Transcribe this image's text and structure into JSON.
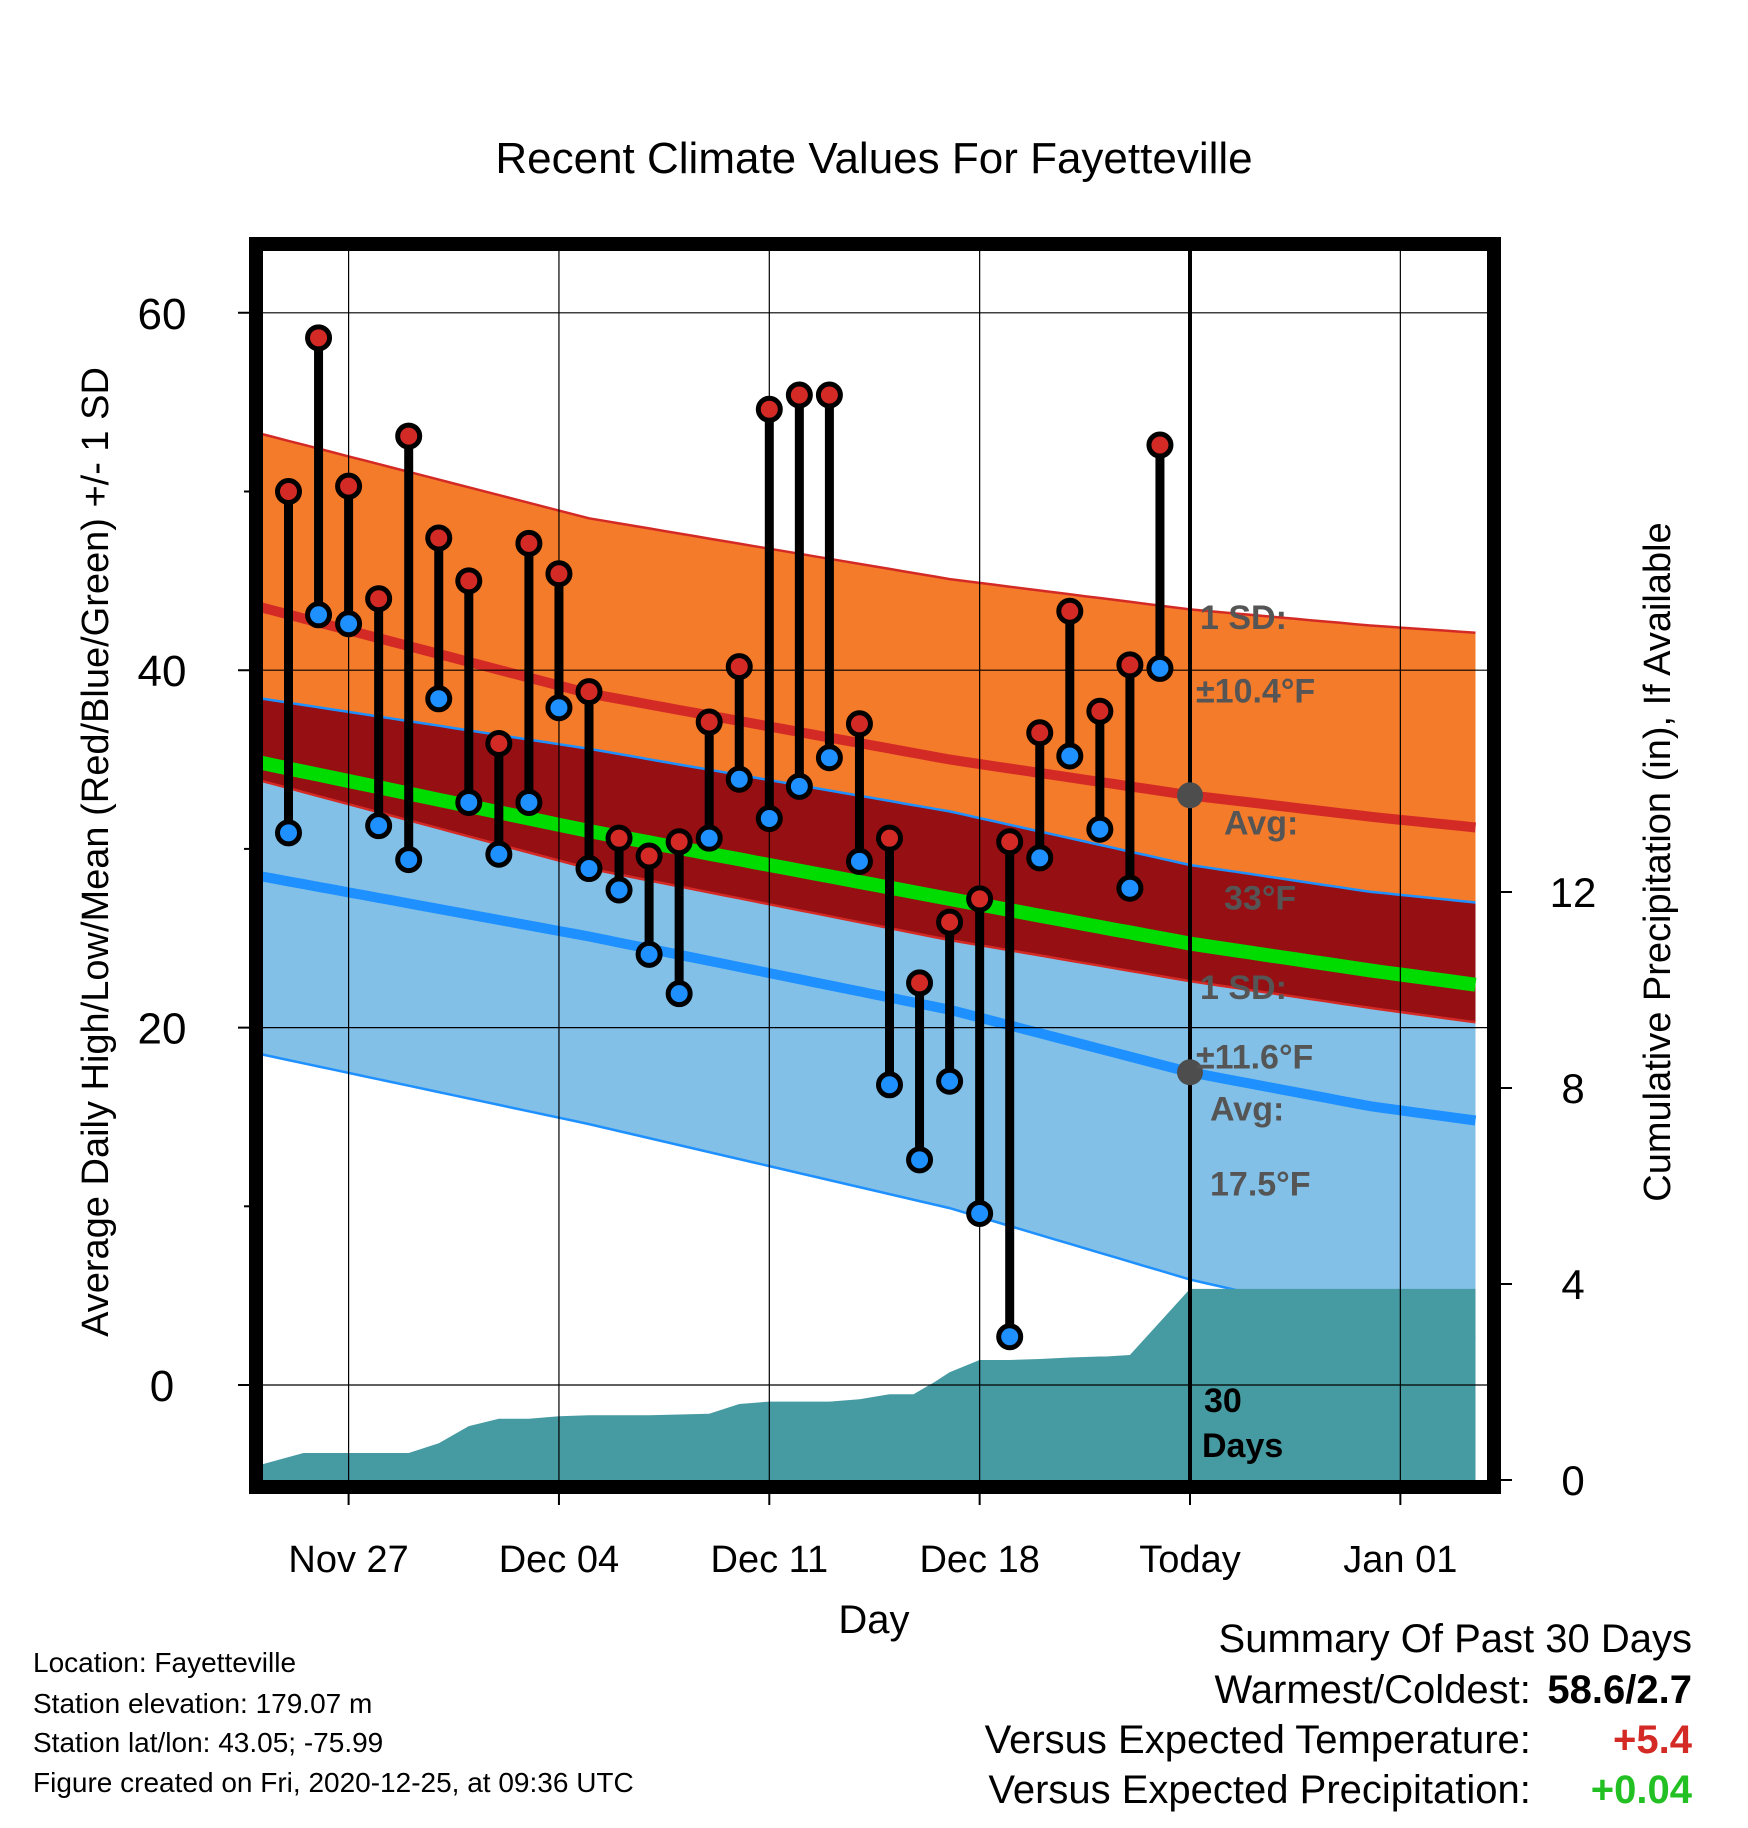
{
  "chart_data": {
    "type": "line",
    "title": "Recent Climate Values For Fayetteville",
    "xlabel": "Day",
    "ylabel": "Average Daily High/Low/Mean (Red/Blue/Green) +/- 1 SD",
    "y2label": "Cumulative Precipitation (in), If Available",
    "x_ticks": [
      "Nov 27",
      "Dec 04",
      "Dec 11",
      "Dec 18",
      "Today",
      "Jan 01"
    ],
    "y_ticks": [
      "0",
      "20",
      "40",
      "60"
    ],
    "y2_ticks": [
      "0",
      "4",
      "8",
      "12"
    ],
    "ylim": [
      -4.7,
      64
    ],
    "y2lim": [
      0,
      25.1
    ],
    "xlim": [
      -32.5,
      9.5
    ],
    "x_unit": "days relative to Today",
    "grid": true,
    "observed": {
      "days": [
        -30,
        -29,
        -28,
        -27,
        -26,
        -25,
        -24,
        -23,
        -22,
        -21,
        -20,
        -19,
        -18,
        -17,
        -16,
        -15,
        -14,
        -13,
        -12,
        -11,
        -10,
        -9,
        -8,
        -7,
        -6,
        -5,
        -4,
        -3,
        -2,
        -1
      ],
      "high": [
        50.0,
        58.6,
        50.3,
        44.0,
        53.1,
        47.4,
        45.0,
        35.9,
        47.1,
        45.4,
        38.8,
        30.6,
        29.6,
        30.4,
        37.1,
        40.2,
        54.6,
        55.4,
        55.4,
        37.0,
        30.6,
        22.5,
        25.9,
        27.2,
        30.4,
        36.5,
        43.3,
        37.7,
        40.3,
        52.6
      ],
      "low": [
        30.9,
        43.1,
        42.6,
        31.3,
        29.4,
        38.4,
        32.6,
        29.7,
        32.6,
        37.9,
        28.9,
        27.7,
        24.1,
        21.9,
        30.6,
        33.9,
        31.7,
        33.5,
        35.1,
        29.3,
        16.8,
        12.6,
        17.0,
        9.6,
        2.7,
        29.5,
        35.2,
        31.1,
        27.8,
        40.1
      ]
    },
    "normal_high": {
      "name": "Avg high",
      "days": [
        -32,
        -20,
        -8,
        0,
        6,
        9.5
      ],
      "mean": [
        44.0,
        38.7,
        35.0,
        33.0,
        31.8,
        31.2
      ],
      "sd": [
        9.7,
        9.8,
        10.1,
        10.4,
        10.7,
        10.9
      ]
    },
    "normal_mean": {
      "name": "Avg mean",
      "days": [
        -32,
        -20,
        -8,
        0,
        6,
        9.5
      ],
      "values": [
        35.2,
        31.0,
        27.2,
        24.7,
        23.2,
        22.4
      ]
    },
    "normal_low": {
      "name": "Avg low",
      "days": [
        -32,
        -20,
        -8,
        0,
        6,
        9.5
      ],
      "mean": [
        28.8,
        25.1,
        21.0,
        17.5,
        15.6,
        14.8
      ],
      "sd": [
        9.9,
        10.5,
        11.1,
        11.6,
        12.0,
        12.2
      ]
    },
    "precip": {
      "days": [
        -31.8,
        -31,
        -29.5,
        -27,
        -26,
        -25,
        -24,
        -23,
        -22,
        -21,
        -20,
        -18,
        -16,
        -15,
        -14,
        -13,
        -12,
        -11,
        -10,
        -9.2,
        -8.5,
        -8,
        -7,
        -6,
        -5,
        -4,
        -3,
        -2.8,
        -2,
        0,
        9.5
      ],
      "values": [
        0.0,
        0.3,
        0.55,
        0.55,
        0.55,
        0.75,
        1.1,
        1.25,
        1.25,
        1.3,
        1.32,
        1.32,
        1.35,
        1.55,
        1.6,
        1.6,
        1.6,
        1.65,
        1.75,
        1.75,
        2.0,
        2.2,
        2.45,
        2.45,
        2.47,
        2.5,
        2.52,
        2.52,
        2.55,
        3.9,
        3.9
      ]
    },
    "annotations": {
      "high_sd_line1": "1 SD:",
      "high_sd_line2": "±10.4°F",
      "high_avg_line1": "Avg:",
      "high_avg_line2": "33°F",
      "low_sd_line1": "1 SD:",
      "low_sd_line2": "±11.6°F",
      "low_avg_line1": "Avg:",
      "low_avg_line2": "17.5°F",
      "window_line1": "30",
      "window_line2": "Days"
    },
    "colors": {
      "high_band": "#f47b2a",
      "high_line": "#d42a25",
      "overlap_band": "#960f12",
      "low_band": "#82c0e8",
      "low_line": "#1e90ff",
      "mean_line": "#00dc00",
      "precip_fill": "#469aa2",
      "high_marker": "#d42a25",
      "low_marker": "#1e90ff"
    }
  },
  "info": {
    "location": "Location: Fayetteville",
    "elevation": "Station elevation: 179.07 m",
    "latlon": "Station lat/lon: 43.05; -75.99",
    "created": "Figure created on Fri, 2020-12-25, at 09:36 UTC"
  },
  "summary": {
    "title": "Summary Of Past 30 Days",
    "warm_cold_label": "Warmest/Coldest:",
    "warm_cold_value": "58.6/2.7",
    "temp_label": "Versus Expected Temperature:",
    "temp_value": "+5.4",
    "temp_color": "#d42a25",
    "precip_label": "Versus Expected Precipitation:",
    "precip_value": "+0.04",
    "precip_color": "#22c022"
  }
}
